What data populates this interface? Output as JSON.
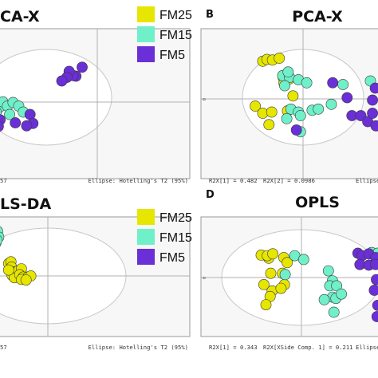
{
  "colors": {
    "FM25": "#e6e600",
    "FM15": "#6ff0c8",
    "FM5": "#6a2fd6"
  },
  "legends": [
    {
      "items": [
        {
          "label": "FM25",
          "group": "FM25"
        },
        {
          "label": "FM15",
          "group": "FM15"
        },
        {
          "label": "FM5",
          "group": "FM5"
        }
      ]
    },
    {
      "items": [
        {
          "label": "FM25",
          "group": "FM25"
        },
        {
          "label": "FM15",
          "group": "FM15"
        },
        {
          "label": "FM5",
          "group": "FM5"
        }
      ]
    }
  ],
  "chart_data": [
    {
      "type": "scatter",
      "panel_letter": "",
      "title": "CA-X",
      "xlim": [
        -10,
        10
      ],
      "ylim": [
        -8,
        8
      ],
      "footer_left": "57",
      "footer_right": "Ellipse: Hotelling's T2 (95%)",
      "series": [
        {
          "group": "FM25",
          "points": []
        },
        {
          "group": "FM15",
          "points": [
            [
              -9.5,
              -0.3
            ],
            [
              -8.5,
              -1.5
            ],
            [
              -7.8,
              -0.5
            ],
            [
              -7,
              -1.2
            ],
            [
              -6,
              -0.6
            ],
            [
              -5,
              -1.2
            ],
            [
              -4.2,
              -2.2
            ],
            [
              -6.6,
              -2.6
            ],
            [
              -9,
              -2.2
            ]
          ]
        },
        {
          "group": "FM5",
          "points": [
            [
              6.2,
              5.3
            ],
            [
              5.1,
              3.8
            ],
            [
              4.6,
              3.9
            ],
            [
              3.9,
              4.6
            ],
            [
              3.5,
              3.6
            ],
            [
              2.6,
              3.0
            ],
            [
              -3,
              -2.6
            ],
            [
              -2.5,
              -4.1
            ],
            [
              -3.6,
              -4.5
            ],
            [
              -5.6,
              -4.0
            ],
            [
              -8.3,
              -3.5
            ],
            [
              -8.6,
              -4.6
            ]
          ]
        }
      ]
    },
    {
      "type": "scatter",
      "panel_letter": "B",
      "title": "PCA-X",
      "xlim": [
        -10,
        10
      ],
      "ylim": [
        -8,
        8
      ],
      "axis_tick": "0",
      "footer_items": [
        "R2X[1] = 0.482",
        "R2X[2] = 0.0986",
        "Ellipse"
      ],
      "series": [
        {
          "group": "FM25",
          "points": [
            [
              -6.8,
              6.3
            ],
            [
              -6.2,
              6.6
            ],
            [
              -5.4,
              6.5
            ],
            [
              -4.4,
              6.8
            ],
            [
              -3.8,
              3.5
            ],
            [
              -3.7,
              2.6
            ],
            [
              -3,
              3.3
            ],
            [
              -2.4,
              0.5
            ],
            [
              -7.9,
              -1.2
            ],
            [
              -6.8,
              -2.4
            ],
            [
              -5.5,
              -2.2
            ],
            [
              -3.2,
              -2.0
            ],
            [
              -5.9,
              -4.3
            ]
          ]
        },
        {
          "group": "FM15",
          "points": [
            [
              -3.9,
              3.9
            ],
            [
              -2.9,
              3.6
            ],
            [
              -3.6,
              2.2
            ],
            [
              -2.7,
              -1.7
            ],
            [
              -3.3,
              -3.3
            ],
            [
              -1.6,
              -2.2
            ],
            [
              -1.3,
              -2.8
            ],
            [
              -1.3,
              -5.5
            ],
            [
              -3.1,
              4.5
            ],
            [
              0.4,
              -1.9
            ],
            [
              1.3,
              -1.7
            ],
            [
              3.2,
              -0.9
            ],
            [
              4.9,
              2.4
            ],
            [
              8.9,
              3.0
            ],
            [
              -1.6,
              3.2
            ],
            [
              -0.4,
              2.7
            ]
          ]
        },
        {
          "group": "FM5",
          "points": [
            [
              -1.9,
              -5.2
            ],
            [
              3.4,
              2.7
            ],
            [
              5.5,
              0.2
            ],
            [
              6.2,
              -2.8
            ],
            [
              7.5,
              -2.8
            ],
            [
              8.5,
              -3.8
            ],
            [
              9.2,
              -0.2
            ],
            [
              9.2,
              -2.4
            ],
            [
              9.6,
              1.8
            ],
            [
              9.7,
              -4.5
            ]
          ]
        }
      ]
    },
    {
      "type": "scatter",
      "panel_letter": "",
      "title": "LS-DA",
      "xlim": [
        -10,
        10
      ],
      "ylim": [
        -8,
        8
      ],
      "footer_left": "57",
      "footer_right": "Ellipse: Hotelling's T2 (95%)",
      "series": [
        {
          "group": "FM25",
          "points": [
            [
              -6.6,
              -0.2
            ],
            [
              -6.2,
              0.1
            ],
            [
              -6.1,
              -0.8
            ],
            [
              -5.7,
              -1.6
            ],
            [
              -6.0,
              -2.2
            ],
            [
              -5.6,
              -2.6
            ],
            [
              -4.9,
              -1.4
            ],
            [
              -4.4,
              -1.1
            ],
            [
              -4.7,
              -2.1
            ],
            [
              -4.1,
              -2.5
            ],
            [
              -3.3,
              -2.5
            ],
            [
              -2.8,
              -2.3
            ],
            [
              -4.4,
              -2.9
            ],
            [
              -3.6,
              -3.0
            ],
            [
              -6.6,
              -1.3
            ]
          ]
        },
        {
          "group": "FM15",
          "points": [
            [
              -9.2,
              5.8
            ],
            [
              -8.5,
              5.3
            ],
            [
              -8.8,
              4.5
            ],
            [
              -9.3,
              4.7
            ],
            [
              -8.3,
              4.3
            ],
            [
              -8.8,
              3.3
            ],
            [
              -8.6,
              3.8
            ],
            [
              -9.7,
              3.9
            ],
            [
              -9.5,
              4.6
            ]
          ]
        },
        {
          "group": "FM5",
          "points": []
        }
      ]
    },
    {
      "type": "scatter",
      "panel_letter": "D",
      "title": "OPLS",
      "xlim": [
        -10,
        10
      ],
      "ylim": [
        -8,
        8
      ],
      "axis_tick": "0",
      "footer_items": [
        "R2X[1] = 0.343",
        "R2X[XSide Comp. 1] = 0.211",
        "Ellipse"
      ],
      "series": [
        {
          "group": "FM25",
          "points": [
            [
              -7.5,
              3.7
            ],
            [
              -6.4,
              3.2
            ],
            [
              -6.6,
              3.6
            ],
            [
              -5.8,
              3.9
            ],
            [
              -4.2,
              3.3
            ],
            [
              -3.7,
              2.5
            ],
            [
              -6.1,
              0.8
            ],
            [
              -4.4,
              0.8
            ],
            [
              -7.1,
              -1.0
            ],
            [
              -5.9,
              -2.0
            ],
            [
              -6.2,
              -2.9
            ],
            [
              -4.1,
              -1.0
            ],
            [
              -4.6,
              -1.6
            ],
            [
              -6.8,
              -4.2
            ]
          ]
        },
        {
          "group": "FM15",
          "points": [
            [
              -2.6,
              3.6
            ],
            [
              -4.0,
              0.6
            ],
            [
              -1.3,
              3.0
            ],
            [
              2.3,
              1.2
            ],
            [
              2.9,
              -0.4
            ],
            [
              2.5,
              -1.2
            ],
            [
              3.5,
              -1.2
            ],
            [
              2.9,
              -3.0
            ],
            [
              3.4,
              -3.2
            ],
            [
              1.7,
              -3.4
            ],
            [
              3.1,
              -5.4
            ],
            [
              4.2,
              -2.5
            ],
            [
              8.6,
              4.1
            ],
            [
              9.5,
              4.0
            ]
          ]
        },
        {
          "group": "FM5",
          "points": [
            [
              6.6,
              4.0
            ],
            [
              7.2,
              3.6
            ],
            [
              8.2,
              3.9
            ],
            [
              9.2,
              3.3
            ],
            [
              6.9,
              2.2
            ],
            [
              8.2,
              2.1
            ],
            [
              9.2,
              2.2
            ],
            [
              9.3,
              -0.2
            ],
            [
              9.0,
              -1.9
            ],
            [
              9.5,
              -4.3
            ],
            [
              9.4,
              -6.1
            ]
          ]
        }
      ]
    }
  ]
}
